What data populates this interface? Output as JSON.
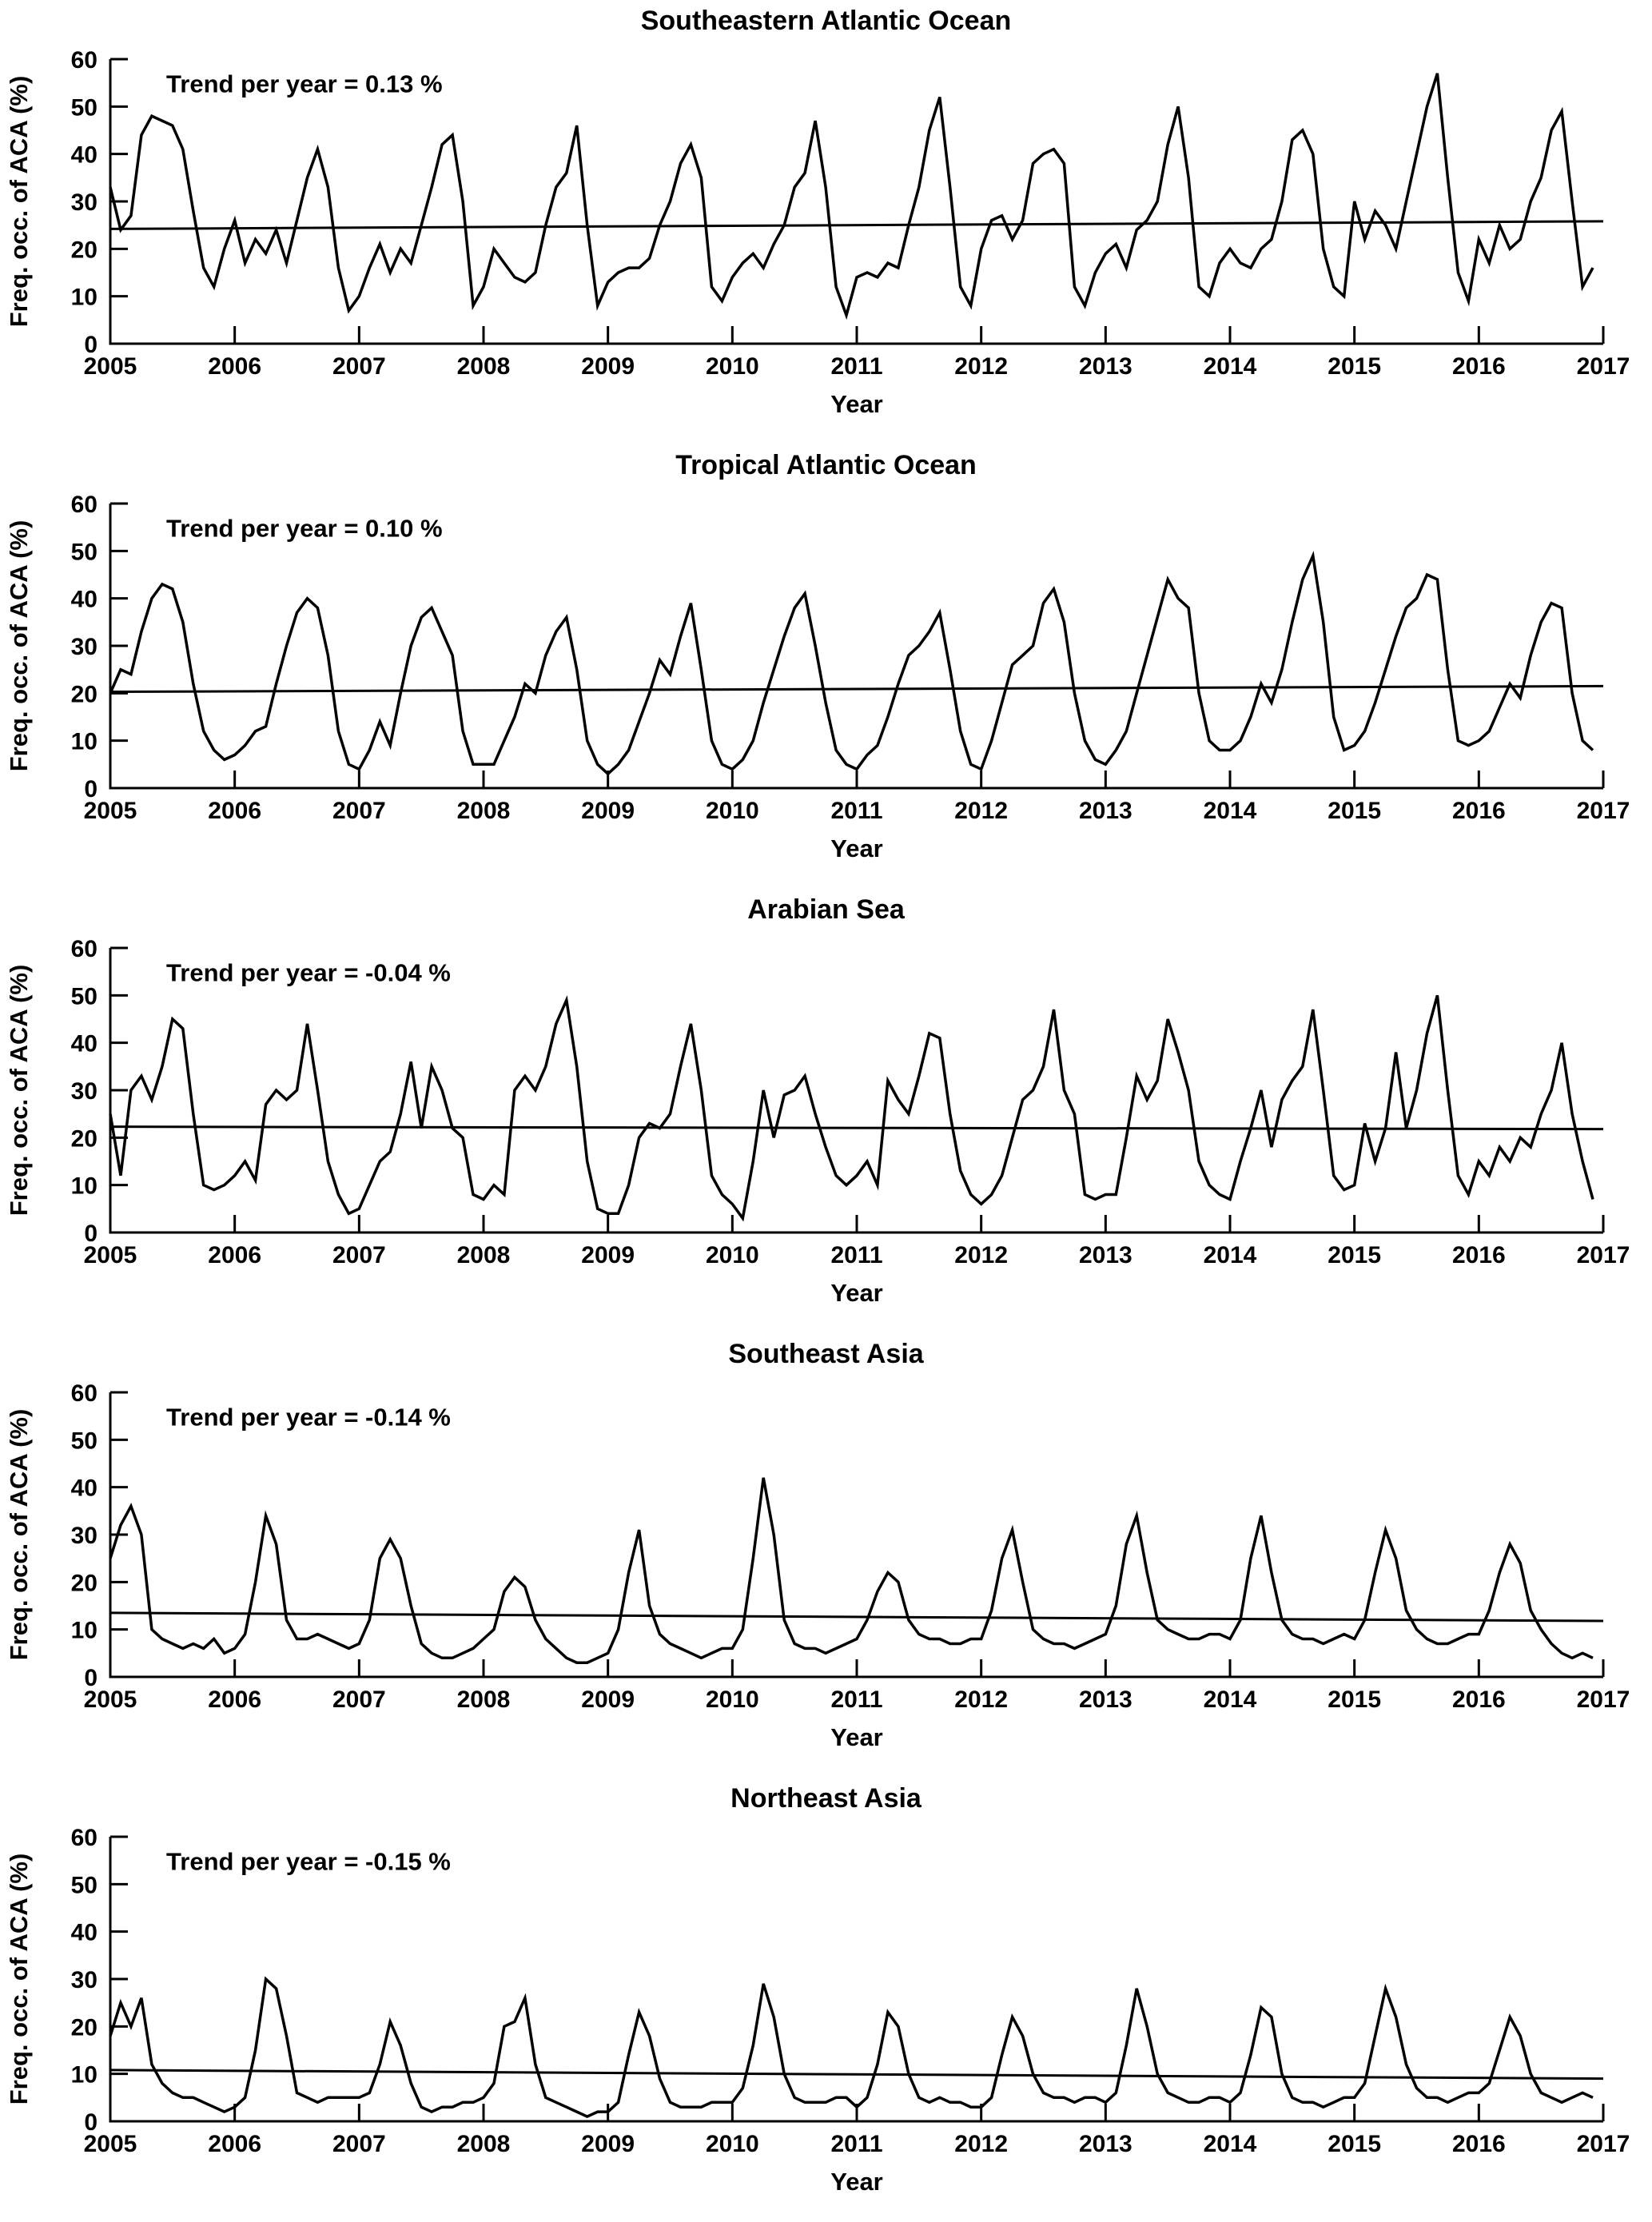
{
  "page": {
    "background": "#ffffff",
    "line_color": "#000000"
  },
  "chart_data": [
    {
      "type": "line",
      "title": "Southeastern Atlantic Ocean",
      "trend_label": "Trend per year =  0.13 %",
      "trend_per_year_percent": 0.13,
      "ylabel": "Freq. occ. of ACA (%)",
      "xlabel": "Year",
      "ylim": [
        0,
        60
      ],
      "xlim": [
        2005,
        2017
      ],
      "yticks": [
        0,
        10,
        20,
        30,
        40,
        50,
        60
      ],
      "xticks": [
        2005,
        2006,
        2007,
        2008,
        2009,
        2010,
        2011,
        2012,
        2013,
        2014,
        2015,
        2016,
        2017
      ],
      "x_start": 2005,
      "x_step_years": 0.0833333,
      "trend_line": [
        24.2,
        25.8
      ],
      "values": [
        33,
        24,
        27,
        44,
        48,
        47,
        46,
        41,
        28,
        16,
        12,
        20,
        26,
        17,
        22,
        19,
        24,
        17,
        26,
        35,
        41,
        33,
        16,
        7,
        10,
        16,
        21,
        15,
        20,
        17,
        25,
        33,
        42,
        44,
        30,
        8,
        12,
        20,
        17,
        14,
        13,
        15,
        25,
        33,
        36,
        46,
        25,
        8,
        13,
        15,
        16,
        16,
        18,
        25,
        30,
        38,
        42,
        35,
        12,
        9,
        14,
        17,
        19,
        16,
        21,
        25,
        33,
        36,
        47,
        33,
        12,
        6,
        14,
        15,
        14,
        17,
        16,
        25,
        33,
        45,
        52,
        33,
        12,
        8,
        20,
        26,
        27,
        22,
        26,
        38,
        40,
        41,
        38,
        12,
        8,
        15,
        19,
        21,
        16,
        24,
        26,
        30,
        42,
        50,
        35,
        12,
        10,
        17,
        20,
        17,
        16,
        20,
        22,
        30,
        43,
        45,
        40,
        20,
        12,
        10,
        30,
        22,
        28,
        25,
        20,
        30,
        40,
        50,
        57,
        35,
        15,
        9,
        22,
        17,
        25,
        20,
        22,
        30,
        35,
        45,
        49,
        30,
        12,
        16
      ]
    },
    {
      "type": "line",
      "title": "Tropical Atlantic Ocean",
      "trend_label": "Trend per year =  0.10 %",
      "trend_per_year_percent": 0.1,
      "ylabel": "Freq. occ. of ACA (%)",
      "xlabel": "Year",
      "ylim": [
        0,
        60
      ],
      "xlim": [
        2005,
        2017
      ],
      "yticks": [
        0,
        10,
        20,
        30,
        40,
        50,
        60
      ],
      "xticks": [
        2005,
        2006,
        2007,
        2008,
        2009,
        2010,
        2011,
        2012,
        2013,
        2014,
        2015,
        2016,
        2017
      ],
      "x_start": 2005,
      "x_step_years": 0.0833333,
      "trend_line": [
        20.3,
        21.5
      ],
      "values": [
        20,
        25,
        24,
        33,
        40,
        43,
        42,
        35,
        22,
        12,
        8,
        6,
        7,
        9,
        12,
        13,
        22,
        30,
        37,
        40,
        38,
        28,
        12,
        5,
        4,
        8,
        14,
        9,
        20,
        30,
        36,
        38,
        33,
        28,
        12,
        5,
        5,
        5,
        10,
        15,
        22,
        20,
        28,
        33,
        36,
        25,
        10,
        5,
        3,
        5,
        8,
        14,
        20,
        27,
        24,
        32,
        39,
        25,
        10,
        5,
        4,
        6,
        10,
        18,
        25,
        32,
        38,
        41,
        30,
        18,
        8,
        5,
        4,
        7,
        9,
        15,
        22,
        28,
        30,
        33,
        37,
        25,
        12,
        5,
        4,
        10,
        18,
        26,
        28,
        30,
        39,
        42,
        35,
        20,
        10,
        6,
        5,
        8,
        12,
        20,
        28,
        36,
        44,
        40,
        38,
        20,
        10,
        8,
        8,
        10,
        15,
        22,
        18,
        25,
        35,
        44,
        49,
        35,
        15,
        8,
        9,
        12,
        18,
        25,
        32,
        38,
        40,
        45,
        44,
        25,
        10,
        9,
        10,
        12,
        17,
        22,
        19,
        28,
        35,
        39,
        38,
        20,
        10,
        8
      ]
    },
    {
      "type": "line",
      "title": "Arabian Sea",
      "trend_label": "Trend per year = -0.04 %",
      "trend_per_year_percent": -0.04,
      "ylabel": "Freq. occ. of ACA (%)",
      "xlabel": "Year",
      "ylim": [
        0,
        60
      ],
      "xlim": [
        2005,
        2017
      ],
      "yticks": [
        0,
        10,
        20,
        30,
        40,
        50,
        60
      ],
      "xticks": [
        2005,
        2006,
        2007,
        2008,
        2009,
        2010,
        2011,
        2012,
        2013,
        2014,
        2015,
        2016,
        2017
      ],
      "x_start": 2005,
      "x_step_years": 0.0833333,
      "trend_line": [
        22.3,
        21.8
      ],
      "values": [
        25,
        12,
        30,
        33,
        28,
        35,
        45,
        43,
        25,
        10,
        9,
        10,
        12,
        15,
        11,
        27,
        30,
        28,
        30,
        44,
        30,
        15,
        8,
        4,
        5,
        10,
        15,
        17,
        25,
        36,
        22,
        35,
        30,
        22,
        20,
        8,
        7,
        10,
        8,
        30,
        33,
        30,
        35,
        44,
        49,
        35,
        15,
        5,
        4,
        4,
        10,
        20,
        23,
        22,
        25,
        35,
        44,
        30,
        12,
        8,
        6,
        3,
        15,
        30,
        20,
        29,
        30,
        33,
        25,
        18,
        12,
        10,
        12,
        15,
        10,
        32,
        28,
        25,
        33,
        42,
        41,
        25,
        13,
        8,
        6,
        8,
        12,
        20,
        28,
        30,
        35,
        47,
        30,
        25,
        8,
        7,
        8,
        8,
        20,
        33,
        28,
        32,
        45,
        38,
        30,
        15,
        10,
        8,
        7,
        15,
        22,
        30,
        18,
        28,
        32,
        35,
        47,
        30,
        12,
        9,
        10,
        23,
        15,
        22,
        38,
        22,
        30,
        42,
        50,
        30,
        12,
        8,
        15,
        12,
        18,
        15,
        20,
        18,
        25,
        30,
        40,
        25,
        15,
        7
      ]
    },
    {
      "type": "line",
      "title": "Southeast Asia",
      "trend_label": "Trend per year = -0.14 %",
      "trend_per_year_percent": -0.14,
      "ylabel": "Freq. occ. of ACA (%)",
      "xlabel": "Year",
      "ylim": [
        0,
        60
      ],
      "xlim": [
        2005,
        2017
      ],
      "yticks": [
        0,
        10,
        20,
        30,
        40,
        50,
        60
      ],
      "xticks": [
        2005,
        2006,
        2007,
        2008,
        2009,
        2010,
        2011,
        2012,
        2013,
        2014,
        2015,
        2016,
        2017
      ],
      "x_start": 2005,
      "x_step_years": 0.0833333,
      "trend_line": [
        13.5,
        11.8
      ],
      "values": [
        25,
        32,
        36,
        30,
        10,
        8,
        7,
        6,
        7,
        6,
        8,
        5,
        6,
        9,
        20,
        34,
        28,
        12,
        8,
        8,
        9,
        8,
        7,
        6,
        7,
        12,
        25,
        29,
        25,
        15,
        7,
        5,
        4,
        4,
        5,
        6,
        8,
        10,
        18,
        21,
        19,
        12,
        8,
        6,
        4,
        3,
        3,
        4,
        5,
        10,
        22,
        31,
        15,
        9,
        7,
        6,
        5,
        4,
        5,
        6,
        6,
        10,
        25,
        42,
        30,
        12,
        7,
        6,
        6,
        5,
        6,
        7,
        8,
        12,
        18,
        22,
        20,
        12,
        9,
        8,
        8,
        7,
        7,
        8,
        8,
        14,
        25,
        31,
        20,
        10,
        8,
        7,
        7,
        6,
        7,
        8,
        9,
        15,
        28,
        34,
        22,
        12,
        10,
        9,
        8,
        8,
        9,
        9,
        8,
        12,
        25,
        34,
        22,
        12,
        9,
        8,
        8,
        7,
        8,
        9,
        8,
        12,
        22,
        31,
        25,
        14,
        10,
        8,
        7,
        7,
        8,
        9,
        9,
        14,
        22,
        28,
        24,
        14,
        10,
        7,
        5,
        4,
        5,
        4
      ]
    },
    {
      "type": "line",
      "title": "Northeast Asia",
      "trend_label": "Trend per year = -0.15 %",
      "trend_per_year_percent": -0.15,
      "ylabel": "Freq. occ. of ACA (%)",
      "xlabel": "Year",
      "ylim": [
        0,
        60
      ],
      "xlim": [
        2005,
        2017
      ],
      "yticks": [
        0,
        10,
        20,
        30,
        40,
        50,
        60
      ],
      "xticks": [
        2005,
        2006,
        2007,
        2008,
        2009,
        2010,
        2011,
        2012,
        2013,
        2014,
        2015,
        2016,
        2017
      ],
      "x_start": 2005,
      "x_step_years": 0.0833333,
      "trend_line": [
        10.8,
        9.0
      ],
      "values": [
        18,
        25,
        20,
        26,
        12,
        8,
        6,
        5,
        5,
        4,
        3,
        2,
        3,
        5,
        15,
        30,
        28,
        18,
        6,
        5,
        4,
        5,
        5,
        5,
        5,
        6,
        12,
        21,
        16,
        8,
        3,
        2,
        3,
        3,
        4,
        4,
        5,
        8,
        20,
        21,
        26,
        12,
        5,
        4,
        3,
        2,
        1,
        2,
        2,
        4,
        14,
        23,
        18,
        9,
        4,
        3,
        3,
        3,
        4,
        4,
        4,
        7,
        16,
        29,
        22,
        10,
        5,
        4,
        4,
        4,
        5,
        5,
        3,
        5,
        12,
        23,
        20,
        10,
        5,
        4,
        5,
        4,
        4,
        3,
        3,
        5,
        14,
        22,
        18,
        10,
        6,
        5,
        5,
        4,
        5,
        5,
        4,
        6,
        16,
        28,
        20,
        10,
        6,
        5,
        4,
        4,
        5,
        5,
        4,
        6,
        14,
        24,
        22,
        10,
        5,
        4,
        4,
        3,
        4,
        5,
        5,
        8,
        18,
        28,
        22,
        12,
        7,
        5,
        5,
        4,
        5,
        6,
        6,
        8,
        15,
        22,
        18,
        10,
        6,
        5,
        4,
        5,
        6,
        5
      ]
    }
  ]
}
